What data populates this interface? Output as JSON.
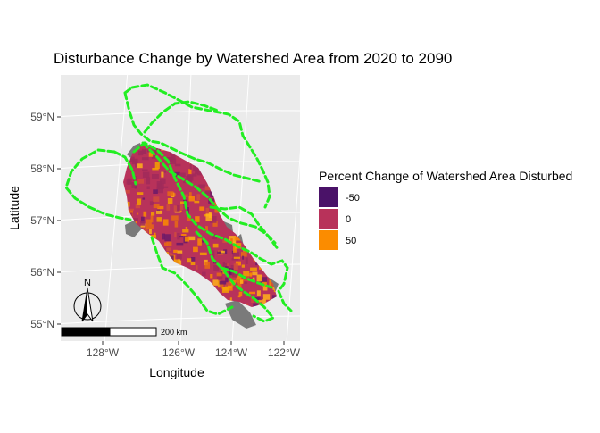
{
  "title": "Disturbance Change by Watershed Area from 2020 to 2090",
  "axes": {
    "xlabel": "Longitude",
    "ylabel": "Latitude",
    "x_ticks": [
      "128°W",
      "126°W",
      "124°W",
      "122°W"
    ],
    "y_ticks": [
      "59°N",
      "58°N",
      "57°N",
      "56°N",
      "55°N"
    ]
  },
  "legend": {
    "title": "Percent Change of Watershed Area Disturbed",
    "items": [
      {
        "label": "-50",
        "color": "#4a1268"
      },
      {
        "label": "0",
        "color": "#b8325a"
      },
      {
        "label": "50",
        "color": "#fb8c00"
      }
    ]
  },
  "north_arrow": {
    "label": "N"
  },
  "scale_bar": {
    "label": "200 km"
  },
  "colors": {
    "panel": "#ebebeb",
    "grid": "#ffffff",
    "boundary": "#22ee22",
    "no_data": "#7a7a7a"
  }
}
